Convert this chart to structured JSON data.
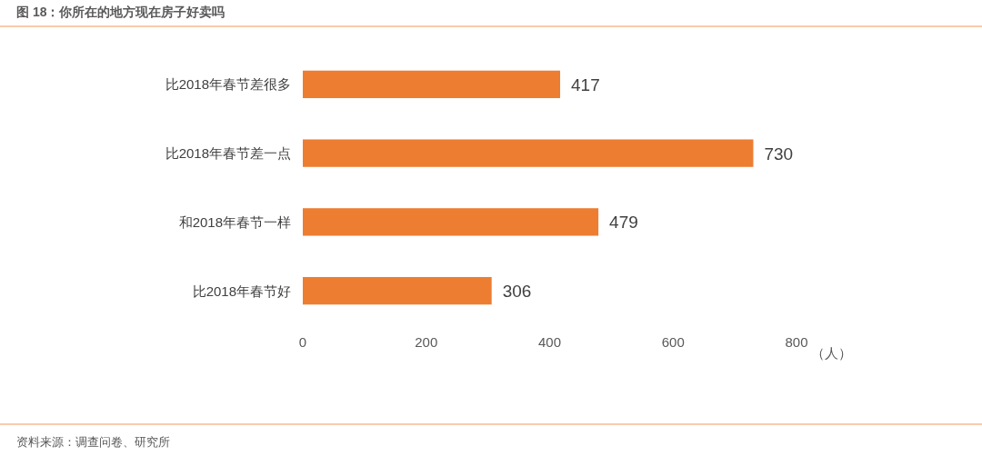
{
  "chart_data": {
    "type": "bar",
    "orientation": "horizontal",
    "title": "图 18：你所在的地方现在房子好卖吗",
    "xlabel": "（人）",
    "categories": [
      "比2018年春节差很多",
      "比2018年春节差一点",
      "和2018年春节一样",
      "比2018年春节好"
    ],
    "values": [
      417,
      730,
      479,
      306
    ],
    "color": "#ed7d31",
    "data_labels": true,
    "xlim": [
      0,
      800
    ],
    "xticks": [
      0,
      200,
      400,
      600,
      800
    ],
    "annotations": [
      "资料来源：调查问卷、研究所"
    ]
  }
}
